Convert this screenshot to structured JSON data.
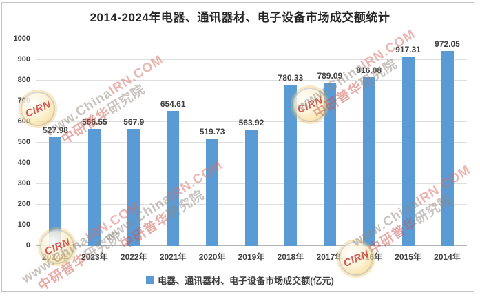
{
  "chart_data": {
    "type": "bar",
    "title": "2014-2024年电器、通讯器材、电子设备市场成交额统计",
    "categories": [
      "2024年",
      "2023年",
      "2022年",
      "2021年",
      "2020年",
      "2019年",
      "2018年",
      "2017年",
      "2016年",
      "2015年",
      "2014年"
    ],
    "values": [
      527.98,
      566.55,
      567.9,
      654.61,
      519.73,
      563.92,
      780.33,
      789.09,
      816.08,
      917.31,
      972.05
    ],
    "series_name": "电器、通讯器材、电子设备市场成交额(亿元)",
    "xlabel": "",
    "ylabel": "",
    "ylim": [
      0,
      1000
    ],
    "ytick_step": 100,
    "yticks": [
      0,
      100,
      200,
      300,
      400,
      500,
      600,
      700,
      800,
      900,
      1000
    ],
    "grid": true,
    "legend_position": "bottom",
    "bar_color": "#5B9BD5",
    "label_color": "#3f3f3f",
    "gridline_color": "#dedede",
    "axis_line_color": "#b3b3b3"
  },
  "legend": {
    "label": "电器、通讯器材、电子设备市场成交额(亿元)",
    "marker_color": "#5B9BD5"
  },
  "watermark": {
    "url_gray": "www.China",
    "url_red": "IRN.COM",
    "cn_red": "中研普华",
    "cn_gray": "研究院",
    "logo_text": "CIRN"
  }
}
